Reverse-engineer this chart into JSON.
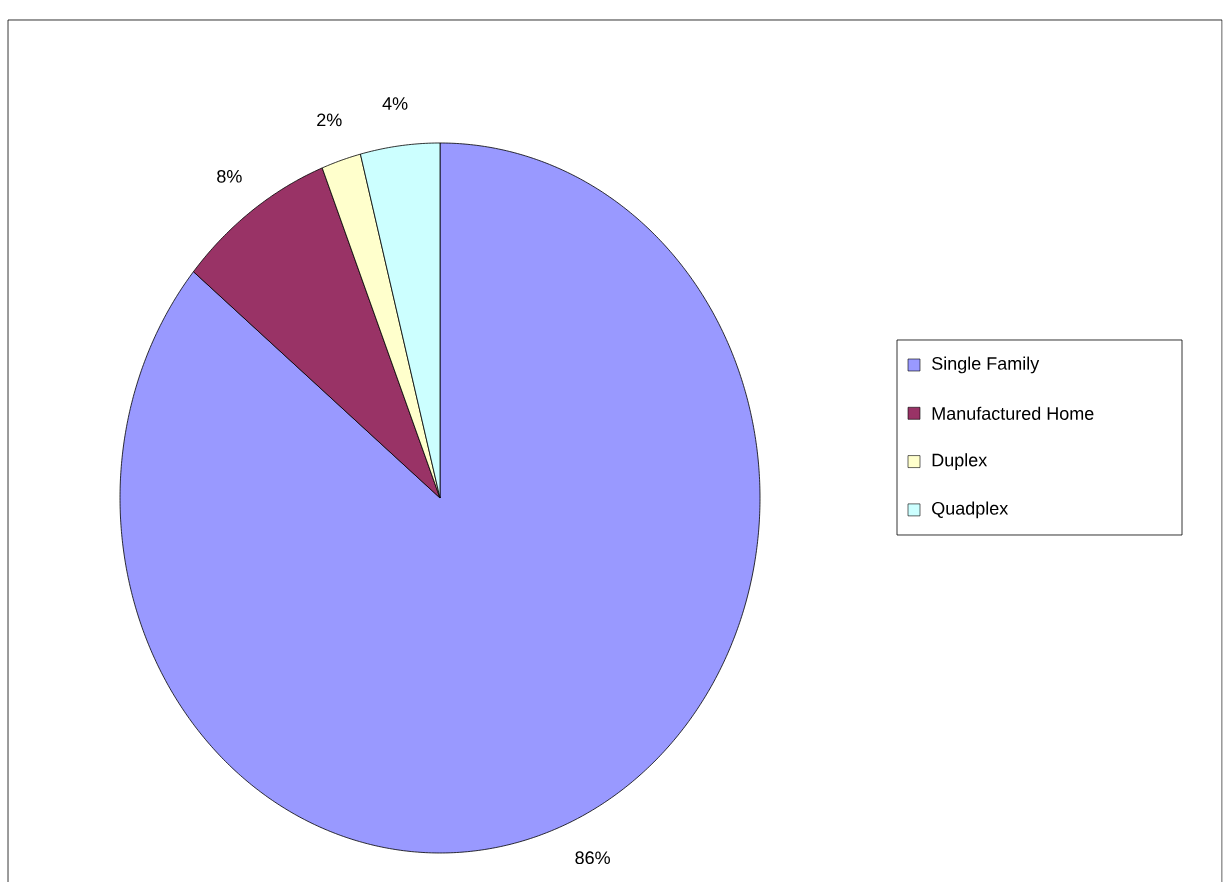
{
  "chart_data": {
    "type": "pie",
    "categories": [
      "Single Family",
      "Manufactured Home",
      "Duplex",
      "Quadplex"
    ],
    "values": [
      86,
      8,
      2,
      4
    ],
    "value_labels": [
      "86%",
      "8%",
      "2%",
      "4%"
    ],
    "colors": [
      "#9999ff",
      "#993366",
      "#ffffcc",
      "#ccffff"
    ],
    "legend": "right"
  }
}
